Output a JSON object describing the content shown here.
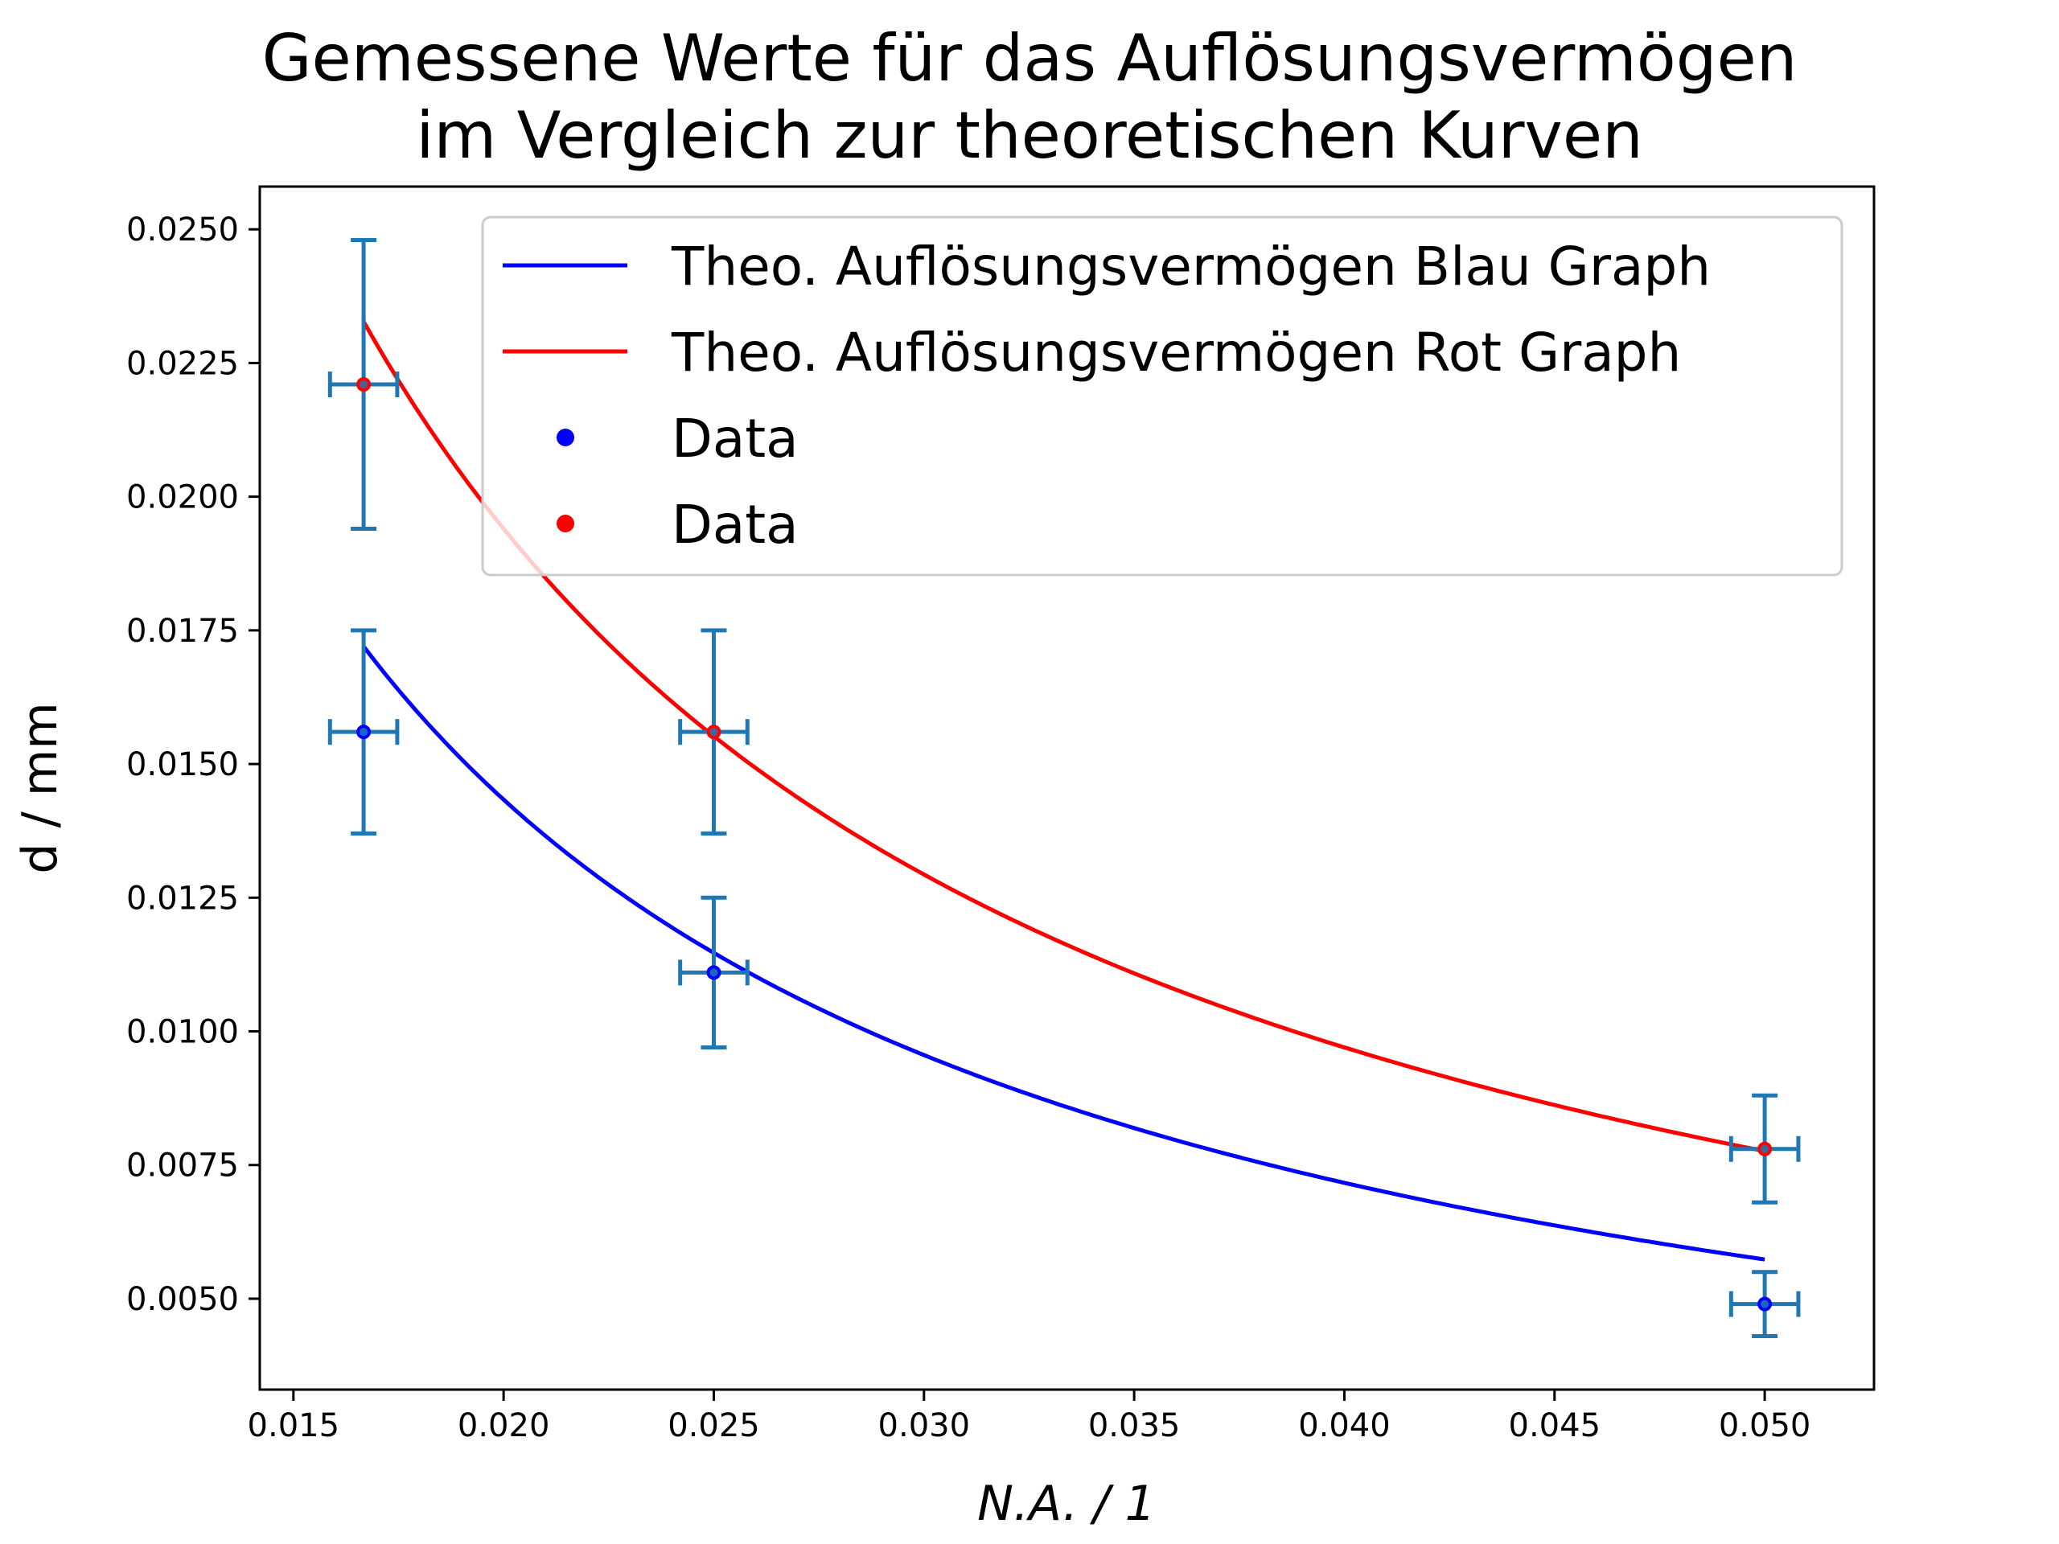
{
  "chart_data": {
    "type": "line",
    "title_lines": [
      "Gemessene Werte für das Auflösungsvermögen",
      "im Vergleich zur theoretischen Kurven"
    ],
    "xlabel": "N.A. / 1",
    "ylabel": "d / mm",
    "xlim": [
      0.0142,
      0.0526
    ],
    "ylim": [
      0.0033,
      0.0258
    ],
    "x_ticks": [
      0.015,
      0.02,
      0.025,
      0.03,
      0.035,
      0.04,
      0.045,
      0.05
    ],
    "x_tick_labels": [
      "0.015",
      "0.020",
      "0.025",
      "0.030",
      "0.035",
      "0.040",
      "0.045",
      "0.050"
    ],
    "y_ticks": [
      0.005,
      0.0075,
      0.01,
      0.0125,
      0.015,
      0.0175,
      0.02,
      0.0225,
      0.025
    ],
    "y_tick_labels": [
      "0.0050",
      "0.0075",
      "0.0100",
      "0.0125",
      "0.0150",
      "0.0175",
      "0.0200",
      "0.0225",
      "0.0250"
    ],
    "grid": false,
    "legend_position": "top-right",
    "theory_curves": [
      {
        "name": "Theo. Auflösungsvermögen Blau Graph",
        "color": "#0000ff",
        "coefficient": 0.0002867,
        "x_range": [
          0.01667,
          0.05
        ]
      },
      {
        "name": "Theo. Auflösungsvermögen Rot Graph",
        "color": "#ff0000",
        "coefficient": 0.000388,
        "x_range": [
          0.01667,
          0.05
        ]
      }
    ],
    "data_series": [
      {
        "name": "Data",
        "color": "#0000ff",
        "points": [
          {
            "x": 0.01667,
            "y": 0.0156,
            "xerr": 0.0008,
            "yerr": 0.0019
          },
          {
            "x": 0.025,
            "y": 0.0111,
            "xerr": 0.0008,
            "yerr": 0.0014
          },
          {
            "x": 0.05,
            "y": 0.0049,
            "xerr": 0.0008,
            "yerr": 0.0006
          }
        ]
      },
      {
        "name": "Data",
        "color": "#ff0000",
        "points": [
          {
            "x": 0.01667,
            "y": 0.0221,
            "xerr": 0.0008,
            "yerr": 0.0027
          },
          {
            "x": 0.025,
            "y": 0.0156,
            "xerr": 0.0008,
            "yerr": 0.0019
          },
          {
            "x": 0.05,
            "y": 0.0078,
            "xerr": 0.0008,
            "yerr": 0.001
          }
        ]
      }
    ],
    "errorbar_color": "#1f77b4",
    "legend_entries": [
      {
        "label": "Theo. Auflösungsvermögen Blau Graph",
        "kind": "line",
        "color": "#0000ff"
      },
      {
        "label": "Theo. Auflösungsvermögen Rot Graph",
        "kind": "line",
        "color": "#ff0000"
      },
      {
        "label": "Data",
        "kind": "point",
        "color": "#0000ff"
      },
      {
        "label": "Data",
        "kind": "point",
        "color": "#ff0000"
      }
    ]
  }
}
